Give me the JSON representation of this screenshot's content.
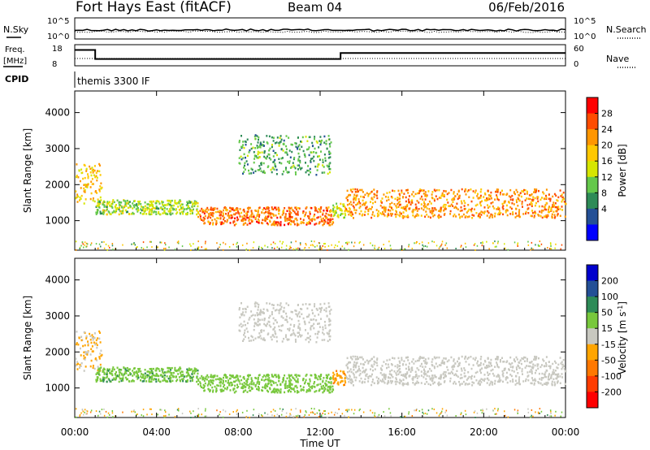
{
  "header": {
    "station": "Fort Hays East (fitACF)",
    "beam": "Beam 04",
    "date": "06/Feb/2016"
  },
  "strips": {
    "nsky_label": "N.Sky",
    "nsearch_label": "N.Search",
    "freq_label_1": "Freq.",
    "freq_label_2": "[MHz]",
    "nave_label": "Nave",
    "cpid_label": "CPID",
    "noise_ticks_left": [
      "10^5",
      "10^0"
    ],
    "noise_ticks_right": [
      "10^5",
      "10^0"
    ],
    "freq_ticks": [
      "18",
      "8"
    ],
    "nave_ticks": [
      "60",
      "0"
    ],
    "cpid_text": "themis 3300 IF",
    "freq_steps": [
      {
        "t": 0.0,
        "v": 16.5
      },
      {
        "t": 0.12,
        "v": 16.5
      },
      {
        "t": 1.0,
        "v": 10.5
      },
      {
        "t": 13.0,
        "v": 14.5
      },
      {
        "t": 24.0,
        "v": 14.5
      }
    ]
  },
  "panels": [
    {
      "id": "power",
      "ylabel": "Slant Range [km]",
      "cb_title": "Power [dB]",
      "cb_ticks": [
        "28",
        "24",
        "20",
        "16",
        "12",
        "8",
        "4"
      ],
      "cb_colors": [
        "#ff0000",
        "#ff4c00",
        "#ff9600",
        "#ffc800",
        "#d6e600",
        "#64c84b",
        "#2e8b57",
        "#245096",
        "#0000ff"
      ]
    },
    {
      "id": "velocity",
      "ylabel": "Slant Range [km]",
      "cb_title": "Velocity [m s",
      "cb_title_sup": "-1",
      "cb_title_end": "]",
      "cb_ticks": [
        "200",
        "100",
        "50",
        "15",
        "-15",
        "-50",
        "-100",
        "-200"
      ],
      "cb_colors": [
        "#0000cd",
        "#245096",
        "#2e8b57",
        "#78c83c",
        "#c8c8c0",
        "#ffa500",
        "#ff7800",
        "#ff3c00",
        "#ff0000"
      ]
    }
  ],
  "x_ticks": [
    "00:00",
    "04:00",
    "08:00",
    "12:00",
    "16:00",
    "20:00",
    "00:00"
  ],
  "x_label": "Time UT",
  "chart_data": {
    "type": "heatmap",
    "x_range_hours": [
      0,
      24
    ],
    "y_range_km": [
      180,
      4600
    ],
    "y_ticks": [
      1000,
      2000,
      3000,
      4000
    ],
    "scatter_bands": [
      {
        "name": "early",
        "t": [
          0,
          1.3
        ],
        "r": [
          1500,
          2600
        ],
        "power": 16,
        "velocity": -15
      },
      {
        "name": "arc1",
        "t": [
          1.0,
          6.0
        ],
        "r": [
          1200,
          1600
        ],
        "power": 10,
        "velocity": 40
      },
      {
        "name": "evening-main",
        "t": [
          6.0,
          12.6
        ],
        "r": [
          900,
          1400
        ],
        "power": 22,
        "velocity": 30
      },
      {
        "name": "gap",
        "t": [
          12.6,
          13.2
        ],
        "r": [
          1100,
          1500
        ],
        "power": 12,
        "velocity": -40
      },
      {
        "name": "morning-main",
        "t": [
          13.2,
          24
        ],
        "r": [
          1100,
          1900
        ],
        "power": 20,
        "velocity": 0
      },
      {
        "name": "upper-arc",
        "t": [
          8.0,
          12.5
        ],
        "r": [
          2300,
          3400
        ],
        "power": 6,
        "velocity": 0
      }
    ]
  }
}
